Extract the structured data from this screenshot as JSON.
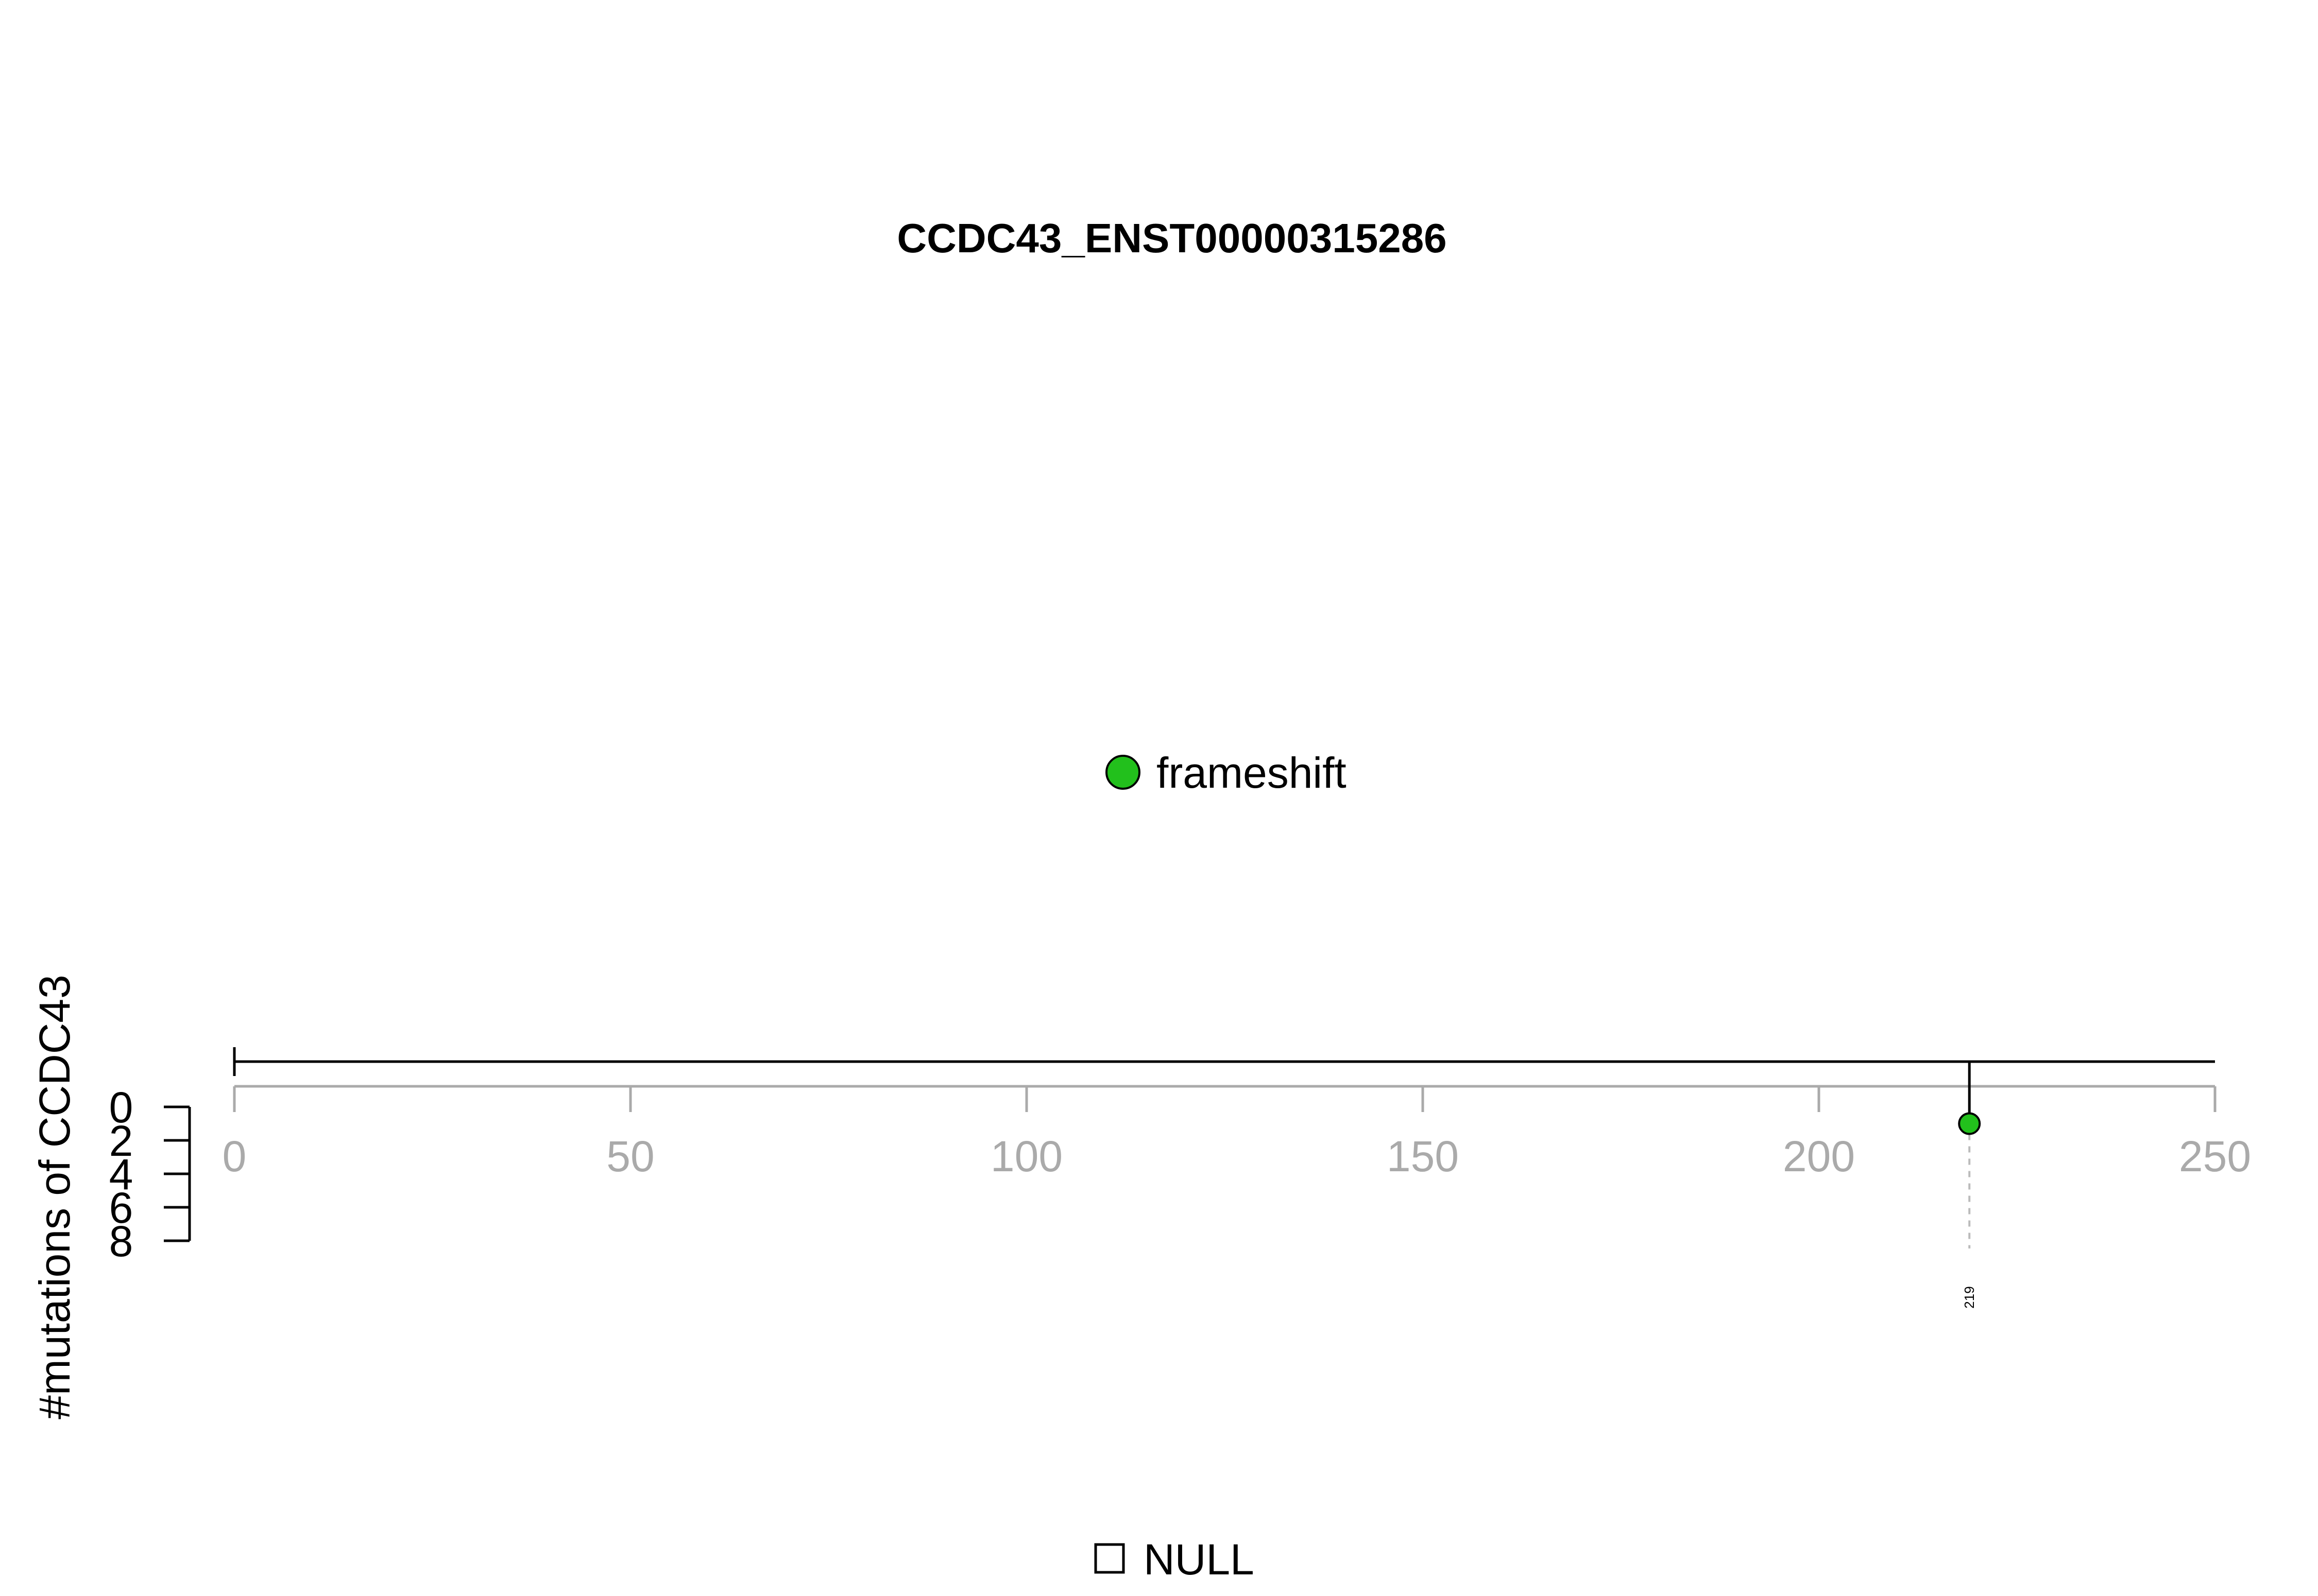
{
  "chart_data": {
    "type": "lollipop",
    "title": "CCDC43_ENST00000315286",
    "ylabel": "#mutations of CCDC43",
    "xlim": [
      0,
      250
    ],
    "xticks": [
      "0",
      "50",
      "100",
      "150",
      "200",
      "250"
    ],
    "ylim": [
      0,
      8
    ],
    "yticks": [
      "0",
      "2",
      "4",
      "6",
      "8"
    ],
    "protein_length": 250,
    "domains_legend": [
      {
        "label": "NULL",
        "color": "#ffffff"
      }
    ],
    "mutation_types": [
      {
        "label": "frameshift",
        "color": "#22c01c"
      }
    ],
    "mutations": [
      {
        "position": 219,
        "count": 1,
        "type": "frameshift",
        "label": "219"
      }
    ]
  }
}
